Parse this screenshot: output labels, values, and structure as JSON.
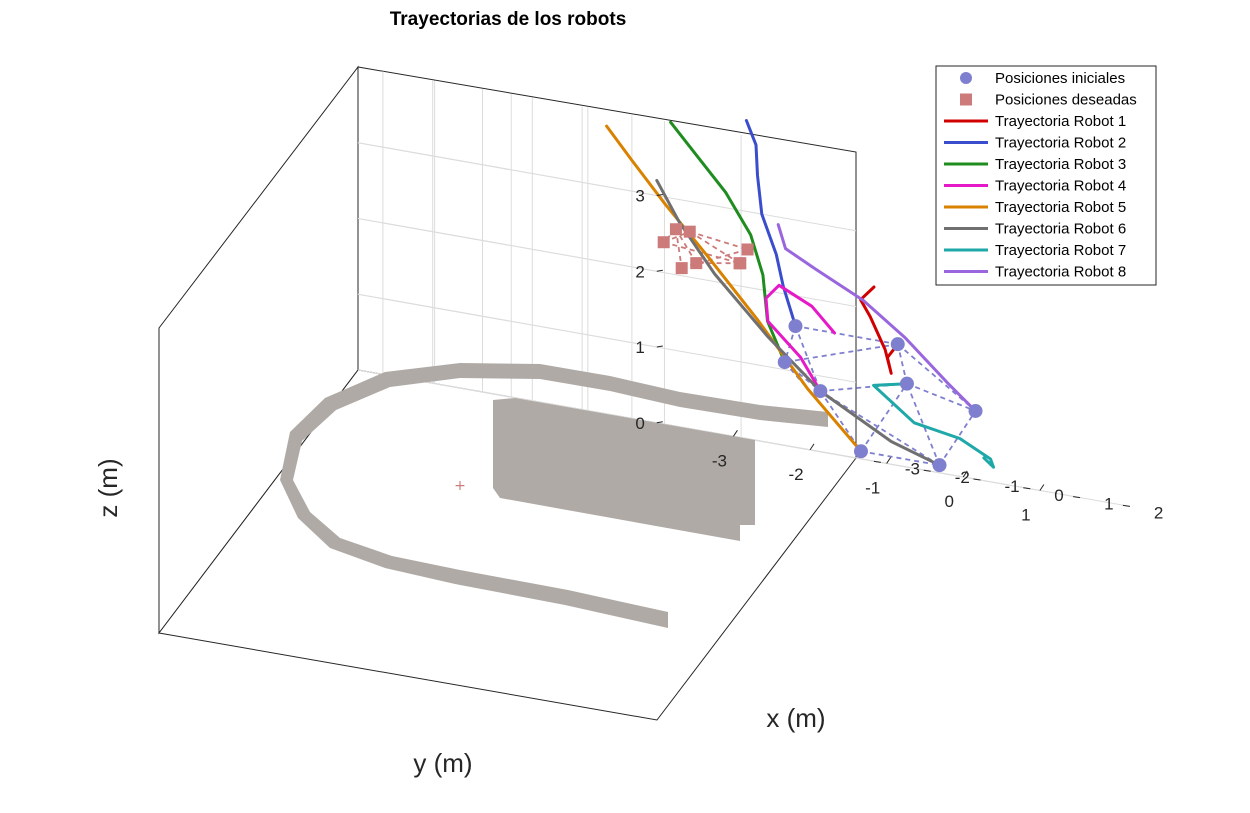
{
  "chart_data": {
    "type": "line",
    "title": "Trayectorias de los robots",
    "xlabel": "x (m)",
    "ylabel": "y (m)",
    "zlabel": "z (m)",
    "xlim": [
      -3.5,
      2.5
    ],
    "ylim": [
      -4,
      2.5
    ],
    "zlim": [
      0,
      4
    ],
    "grid": true,
    "legend_position": "top-right, outside",
    "x_ticks": [
      -3,
      -2,
      -1,
      0,
      1,
      2
    ],
    "y_ticks": [
      -3,
      -2,
      -1,
      0,
      1
    ],
    "z_ticks": [
      0,
      1,
      2,
      3
    ],
    "colors": {
      "initial": "#7f7fcf",
      "desired": "#cc7a7a",
      "obstacle": "#afaaa5",
      "axes": "#262626",
      "grid": "#dcdcdc"
    },
    "legend": [
      {
        "label": "Posiciones iniciales",
        "kind": "marker-circle",
        "color": "#7f7fcf"
      },
      {
        "label": "Posiciones deseadas",
        "kind": "marker-square",
        "color": "#cc7a7a"
      },
      {
        "label": "Trayectoria Robot 1",
        "kind": "line",
        "color": "#d10000"
      },
      {
        "label": "Trayectoria Robot 2",
        "kind": "line",
        "color": "#3a4dcc"
      },
      {
        "label": "Trayectoria Robot 3",
        "kind": "line",
        "color": "#1e8c1e"
      },
      {
        "label": "Trayectoria Robot 4",
        "kind": "line",
        "color": "#e619c8"
      },
      {
        "label": "Trayectoria Robot 5",
        "kind": "line",
        "color": "#d98200"
      },
      {
        "label": "Trayectoria Robot 6",
        "kind": "line",
        "color": "#707070"
      },
      {
        "label": "Trayectoria Robot 7",
        "kind": "line",
        "color": "#1fa8a8"
      },
      {
        "label": "Trayectoria Robot 8",
        "kind": "line",
        "color": "#9a66dd"
      }
    ],
    "initial_positions": [
      [
        -0.2,
        0.9,
        1.6
      ],
      [
        -0.1,
        -0.5,
        1.6
      ],
      [
        0.3,
        -0.9,
        1.1
      ],
      [
        0.4,
        -0.5,
        0.8
      ],
      [
        0.6,
        -0.1,
        0.1
      ],
      [
        1.1,
        0.6,
        0.1
      ],
      [
        0.6,
        0.5,
        1.1
      ],
      [
        0.9,
        1.2,
        0.9
      ]
    ],
    "initial_links": [
      [
        0,
        1
      ],
      [
        1,
        2
      ],
      [
        2,
        3
      ],
      [
        3,
        4
      ],
      [
        4,
        5
      ],
      [
        5,
        6
      ],
      [
        6,
        0
      ],
      [
        0,
        2
      ],
      [
        1,
        3
      ],
      [
        2,
        4
      ],
      [
        3,
        5
      ],
      [
        4,
        6
      ],
      [
        5,
        7
      ],
      [
        6,
        7
      ],
      [
        3,
        6
      ],
      [
        0,
        7
      ]
    ],
    "desired_positions": [
      [
        -2.9,
        -0.4,
        2.4
      ],
      [
        -3.3,
        0.2,
        2.6
      ],
      [
        -2.5,
        -0.5,
        2.6
      ],
      [
        -2.6,
        0.5,
        2.5
      ],
      [
        -2.9,
        0.6,
        2.3
      ],
      [
        -2.3,
        0.2,
        2.3
      ],
      [
        -3.0,
        -0.1,
        2.1
      ],
      [
        -2.4,
        -0.3,
        2.2
      ]
    ],
    "desired_links": [
      [
        0,
        1
      ],
      [
        1,
        3
      ],
      [
        3,
        4
      ],
      [
        4,
        5
      ],
      [
        5,
        7
      ],
      [
        7,
        2
      ],
      [
        2,
        0
      ],
      [
        1,
        5
      ],
      [
        0,
        4
      ],
      [
        2,
        6
      ],
      [
        6,
        3
      ],
      [
        6,
        7
      ]
    ],
    "series": [
      {
        "name": "Trayectoria Robot 1",
        "points": [
          [
            -0.2,
            0.9,
            1.6
          ],
          [
            -0.1,
            0.7,
            1.4
          ],
          [
            -0.1,
            0.75,
            1.2
          ],
          [
            -0.3,
            0.8,
            1.5
          ],
          [
            -0.6,
            0.8,
            1.9
          ],
          [
            -1.1,
            1.0,
            2.1
          ],
          [
            -1.6,
            1.5,
            2.3
          ]
        ]
      },
      {
        "name": "Trayectoria Robot 2",
        "points": [
          [
            -0.1,
            -0.5,
            1.6
          ],
          [
            -0.5,
            -0.4,
            2.1
          ],
          [
            -1.1,
            -0.1,
            2.5
          ],
          [
            -1.7,
            0.1,
            3.0
          ],
          [
            -2.4,
            0.5,
            3.5
          ],
          [
            -3.2,
            1.0,
            3.9
          ],
          [
            -3.7,
            1.2,
            4.2
          ]
        ]
      },
      {
        "name": "Trayectoria Robot 3",
        "points": [
          [
            0.3,
            -0.9,
            1.1
          ],
          [
            -0.2,
            -0.8,
            1.6
          ],
          [
            -0.6,
            -0.6,
            2.2
          ],
          [
            -1.0,
            -0.5,
            2.7
          ],
          [
            -1.5,
            -0.5,
            3.2
          ],
          [
            -1.9,
            -0.6,
            3.6
          ],
          [
            -2.3,
            -0.7,
            4.0
          ]
        ]
      },
      {
        "name": "Trayectoria Robot 4",
        "points": [
          [
            0.4,
            -0.5,
            0.8
          ],
          [
            0.0,
            -0.5,
            1.2
          ],
          [
            -0.5,
            -0.6,
            1.6
          ],
          [
            -1.0,
            -0.3,
            1.9
          ],
          [
            -1.2,
            0.0,
            2.1
          ],
          [
            -1.0,
            0.3,
            1.9
          ],
          [
            -0.7,
            0.4,
            1.6
          ]
        ]
      },
      {
        "name": "Trayectoria Robot 5",
        "points": [
          [
            0.6,
            -0.1,
            0.1
          ],
          [
            0.3,
            -0.6,
            0.8
          ],
          [
            -0.1,
            -1.0,
            1.6
          ],
          [
            -0.3,
            -1.5,
            2.3
          ],
          [
            -0.4,
            -2.0,
            2.9
          ],
          [
            -0.3,
            -2.5,
            3.4
          ],
          [
            -0.2,
            -2.9,
            3.8
          ]
        ]
      },
      {
        "name": "Trayectoria Robot 6",
        "points": [
          [
            1.1,
            0.6,
            0.1
          ],
          [
            0.9,
            0.1,
            0.3
          ],
          [
            0.4,
            -0.5,
            0.8
          ],
          [
            -0.2,
            -0.8,
            1.4
          ],
          [
            -0.8,
            -1.1,
            2.1
          ],
          [
            -1.2,
            -1.3,
            2.7
          ],
          [
            -1.5,
            -1.4,
            3.2
          ]
        ]
      },
      {
        "name": "Trayectoria Robot 7",
        "points": [
          [
            0.6,
            0.5,
            1.1
          ],
          [
            0.7,
            0.0,
            1.0
          ],
          [
            0.9,
            0.4,
            0.6
          ],
          [
            1.2,
            0.8,
            0.5
          ],
          [
            1.2,
            1.2,
            0.3
          ],
          [
            0.8,
            1.5,
            0.2
          ],
          [
            0.3,
            1.7,
            0.3
          ]
        ]
      },
      {
        "name": "Trayectoria Robot 8",
        "points": [
          [
            0.9,
            1.2,
            0.9
          ],
          [
            0.5,
            1.1,
            1.2
          ],
          [
            -0.2,
            1.0,
            1.7
          ],
          [
            -0.9,
            0.9,
            2.1
          ],
          [
            -1.7,
            0.8,
            2.4
          ],
          [
            -2.3,
            0.8,
            2.6
          ],
          [
            -2.6,
            0.9,
            2.9
          ]
        ]
      }
    ]
  }
}
